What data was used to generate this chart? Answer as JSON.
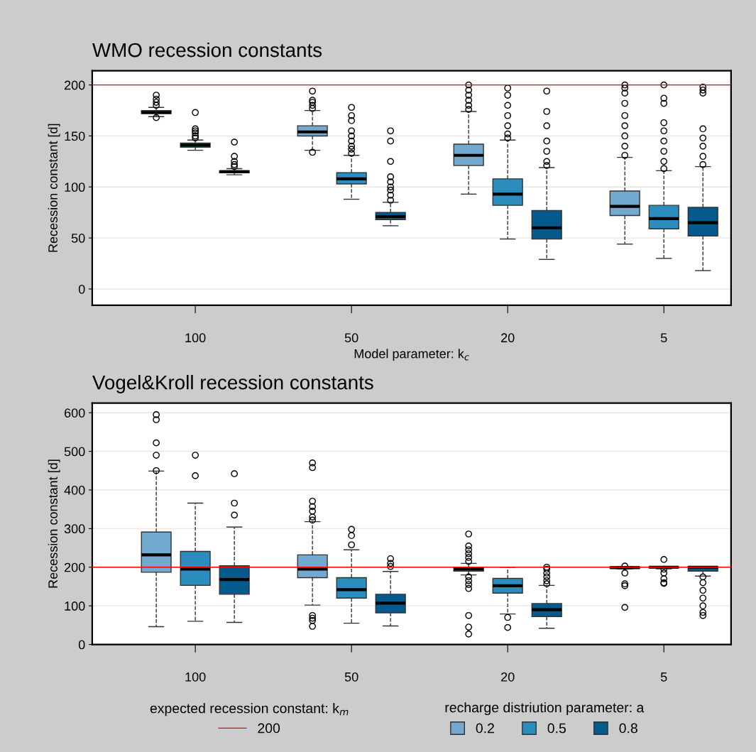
{
  "chart_data": [
    {
      "type": "box",
      "title": "WMO recession constants",
      "xlabel": "Model parameter: k$_{c}$",
      "ylabel": "Recession constant [d]",
      "categories": [
        "100",
        "50",
        "20",
        "5"
      ],
      "ylim": [
        -16,
        214
      ],
      "yticks": [
        0,
        50,
        100,
        150,
        200
      ],
      "grid": "y",
      "legend": false,
      "marker": "circle",
      "ref_lines": [
        {
          "axis": "y",
          "value": 200,
          "color": "#ff0000"
        }
      ],
      "series": [
        {
          "color": "#74a9cf",
          "boxes": [
            {
              "low": 169,
              "q1": 172,
              "median": 173,
              "q3": 175,
              "high": 178,
              "outliers": [
                168,
                180,
                183,
                186,
                190
              ]
            },
            {
              "low": 136,
              "q1": 150,
              "median": 154,
              "q3": 160,
              "high": 175,
              "outliers": [
                134,
                177,
                180,
                183,
                185,
                194
              ]
            },
            {
              "low": 93,
              "q1": 121,
              "median": 131,
              "q3": 142,
              "high": 174,
              "outliers": [
                176,
                180,
                185,
                190,
                195,
                200
              ]
            },
            {
              "low": 44,
              "q1": 72,
              "median": 81,
              "q3": 96,
              "high": 129,
              "outliers": [
                131,
                140,
                150,
                160,
                170,
                182,
                192,
                197,
                200
              ]
            }
          ]
        },
        {
          "color": "#2b8cbe",
          "boxes": [
            {
              "low": 136,
              "q1": 139,
              "median": 141,
              "q3": 143,
              "high": 146,
              "outliers": [
                148,
                150,
                153,
                155,
                157,
                173
              ]
            },
            {
              "low": 88,
              "q1": 103,
              "median": 108,
              "q3": 114,
              "high": 131,
              "outliers": [
                133,
                137,
                140,
                145,
                150,
                155,
                165,
                170,
                178
              ]
            },
            {
              "low": 49,
              "q1": 82,
              "median": 93,
              "q3": 108,
              "high": 146,
              "outliers": [
                148,
                152,
                160,
                170,
                180,
                190,
                197
              ]
            },
            {
              "low": 30,
              "q1": 59,
              "median": 69,
              "q3": 82,
              "high": 116,
              "outliers": [
                118,
                125,
                135,
                145,
                155,
                163,
                182,
                187,
                200
              ]
            }
          ]
        },
        {
          "color": "#045a8d",
          "boxes": [
            {
              "low": 112,
              "q1": 114,
              "median": 115,
              "q3": 116,
              "high": 118,
              "outliers": [
                120,
                122,
                125,
                130,
                144
              ]
            },
            {
              "low": 62,
              "q1": 68,
              "median": 71,
              "q3": 75,
              "high": 85,
              "outliers": [
                87,
                92,
                97,
                100,
                105,
                110,
                125,
                145,
                155
              ]
            },
            {
              "low": 29,
              "q1": 49,
              "median": 60,
              "q3": 77,
              "high": 119,
              "outliers": [
                121,
                125,
                135,
                145,
                160,
                174,
                194
              ]
            },
            {
              "low": 18,
              "q1": 52,
              "median": 65,
              "q3": 80,
              "high": 120,
              "outliers": [
                122,
                130,
                140,
                148,
                157,
                192,
                195,
                198
              ]
            }
          ]
        }
      ]
    },
    {
      "type": "box",
      "title": "Vogel&Kroll recession constants",
      "ylabel": "Recession constant [d]",
      "legend_title": "recharge distriution parameter: a",
      "annotations": [
        "expected recession constant: k$_{m}$"
      ],
      "categories": [
        "100",
        "50",
        "20",
        "5"
      ],
      "ylim": [
        0,
        625
      ],
      "yticks": [
        0,
        100,
        200,
        300,
        400,
        500,
        600
      ],
      "grid": "y",
      "legend": "bottom",
      "marker": "circle",
      "ref_lines": [
        {
          "axis": "y",
          "value": 200,
          "label": "200",
          "color": "#ff0000"
        }
      ],
      "series": [
        {
          "name": "0.2",
          "color": "#74a9cf",
          "boxes": [
            {
              "low": 46,
              "q1": 187,
              "median": 232,
              "q3": 291,
              "high": 449,
              "outliers": [
                450,
                490,
                522,
                582,
                595
              ]
            },
            {
              "low": 102,
              "q1": 173,
              "median": 195,
              "q3": 232,
              "high": 318,
              "outliers": [
                47,
                62,
                68,
                75,
                322,
                330,
                345,
                357,
                371,
                458,
                470
              ]
            },
            {
              "low": 180,
              "q1": 190,
              "median": 195,
              "q3": 199,
              "high": 210,
              "outliers": [
                27,
                45,
                75,
                145,
                155,
                165,
                175,
                215,
                225,
                235,
                245,
                255,
                286
              ]
            },
            {
              "low": 196,
              "q1": 197,
              "median": 199,
              "q3": 201,
              "high": 202,
              "outliers": [
                96,
                152,
                157,
                185,
                203
              ]
            }
          ]
        },
        {
          "name": "0.5",
          "color": "#2b8cbe",
          "boxes": [
            {
              "low": 60,
              "q1": 153,
              "median": 195,
              "q3": 241,
              "high": 366,
              "outliers": [
                437,
                490
              ]
            },
            {
              "low": 55,
              "q1": 120,
              "median": 142,
              "q3": 173,
              "high": 245,
              "outliers": [
                258,
                282,
                298
              ]
            },
            {
              "low": 79,
              "q1": 133,
              "median": 152,
              "q3": 171,
              "high": 200,
              "outliers": [
                44,
                70
              ]
            },
            {
              "low": 196,
              "q1": 198,
              "median": 200,
              "q3": 201,
              "high": 202,
              "outliers": [
                158,
                160,
                170,
                185,
                195,
                220
              ]
            }
          ]
        },
        {
          "name": "0.8",
          "color": "#045a8d",
          "boxes": [
            {
              "low": 57,
              "q1": 130,
              "median": 168,
              "q3": 204,
              "high": 304,
              "outliers": [
                335,
                366,
                442
              ]
            },
            {
              "low": 48,
              "q1": 82,
              "median": 107,
              "q3": 130,
              "high": 189,
              "outliers": [
                202,
                210,
                222
              ]
            },
            {
              "low": 42,
              "q1": 72,
              "median": 90,
              "q3": 106,
              "high": 153,
              "outliers": [
                157,
                165,
                175,
                185,
                195,
                200
              ]
            },
            {
              "low": 177,
              "q1": 190,
              "median": 200,
              "q3": 202,
              "high": 202,
              "outliers": [
                75,
                83,
                100,
                120,
                140,
                160,
                175
              ]
            }
          ]
        }
      ]
    }
  ]
}
